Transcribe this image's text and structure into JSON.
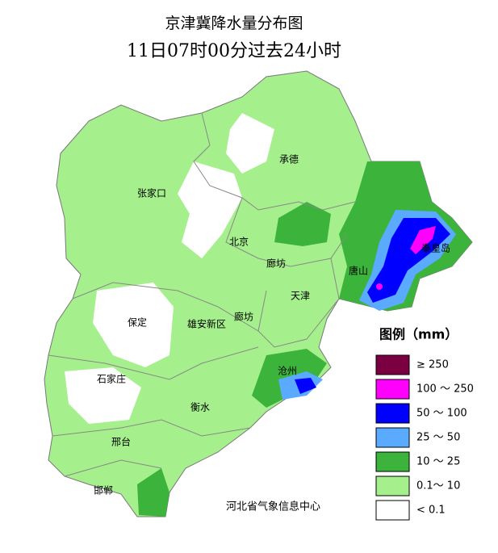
{
  "title": {
    "line1": "京津冀降水量分布图",
    "line2": "11日07时00分过去24小时"
  },
  "cities": [
    "承德",
    "张家口",
    "秦皇岛",
    "北京",
    "廊坊",
    "唐山",
    "天津",
    "保定",
    "雄安新区",
    "廊坊",
    "沧州",
    "石家庄",
    "衡水",
    "邢台",
    "邯郸"
  ],
  "legend": {
    "title": "图例（mm）",
    "items": [
      {
        "label": "≥ 250",
        "color": "#7b0041"
      },
      {
        "label": "100 ～ 250",
        "color": "#ff00ff"
      },
      {
        "label": "50 ～ 100",
        "color": "#0000ff"
      },
      {
        "label": "25 ～ 50",
        "color": "#5aaaff"
      },
      {
        "label": "10 ～ 25",
        "color": "#3cb43c"
      },
      {
        "label": "0.1～ 10",
        "color": "#a5f08c"
      },
      {
        "label": "< 0.1",
        "color": "#ffffff"
      }
    ]
  },
  "footer": "河北省气象信息中心"
}
